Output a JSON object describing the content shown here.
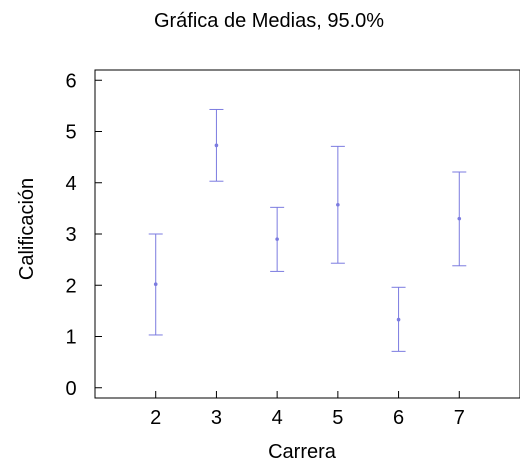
{
  "chart_data": {
    "type": "errorbar",
    "title": "Gráfica de Medias, 95.0%",
    "xlabel": "Carrera",
    "ylabel": "Calificación",
    "x_ticks": [
      "2",
      "3",
      "4",
      "5",
      "6",
      "7"
    ],
    "y_ticks": [
      "0",
      "1",
      "2",
      "3",
      "4",
      "5",
      "6"
    ],
    "xlim": [
      1,
      8
    ],
    "ylim": [
      -0.2,
      6.2
    ],
    "grid": false,
    "color": "#7b7be0",
    "series": [
      {
        "points": [
          {
            "x": 2,
            "mean": 2.02,
            "lower": 1.03,
            "upper": 3.0
          },
          {
            "x": 3,
            "mean": 4.73,
            "lower": 4.03,
            "upper": 5.43
          },
          {
            "x": 4,
            "mean": 2.9,
            "lower": 2.27,
            "upper": 3.52
          },
          {
            "x": 5,
            "mean": 3.57,
            "lower": 2.43,
            "upper": 4.71
          },
          {
            "x": 6,
            "mean": 1.33,
            "lower": 0.71,
            "upper": 1.96
          },
          {
            "x": 7,
            "mean": 3.3,
            "lower": 2.38,
            "upper": 4.21
          }
        ]
      }
    ]
  }
}
